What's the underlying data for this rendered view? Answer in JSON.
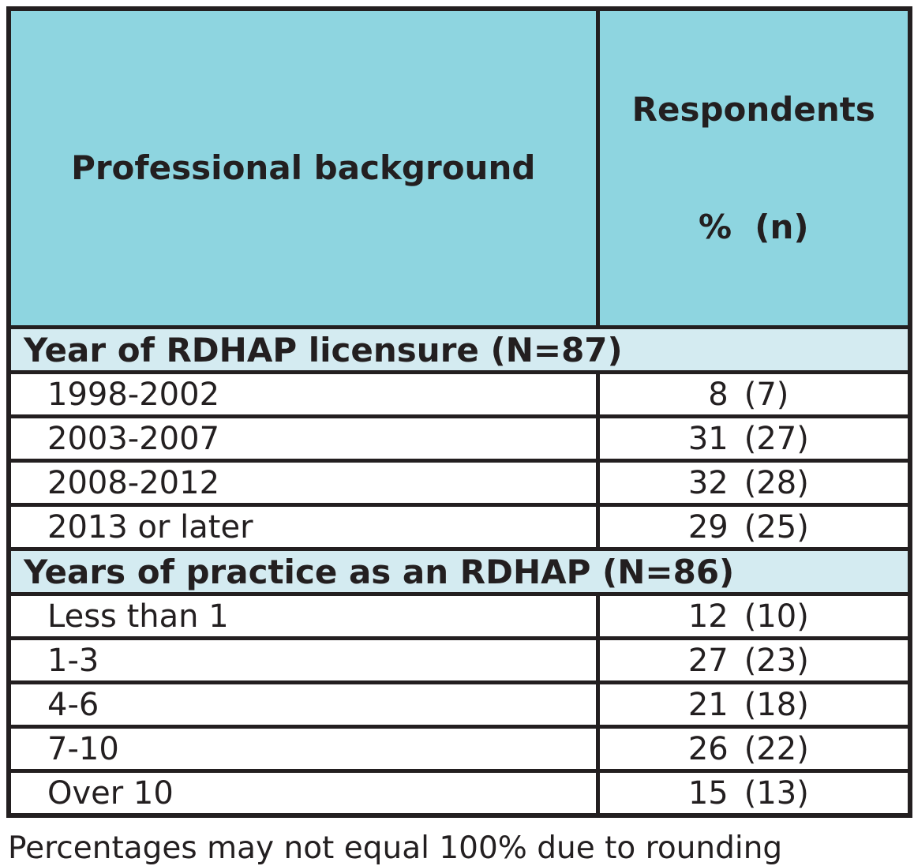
{
  "colors": {
    "header_bg": "#8ed5e0",
    "section_bg": "#d4ebf1",
    "border": "#231f20",
    "text": "#231f20",
    "page_bg": "#ffffff"
  },
  "table": {
    "columns": [
      {
        "label": "Professional background"
      },
      {
        "label_line1": "Respondents",
        "label_line2": "%  (n)"
      }
    ],
    "sections": [
      {
        "title": "Year of RDHAP licensure (N=87)",
        "rows": [
          {
            "label": "1998-2002",
            "pct": "8",
            "n": "(7)"
          },
          {
            "label": "2003-2007",
            "pct": "31",
            "n": "(27)"
          },
          {
            "label": "2008-2012",
            "pct": "32",
            "n": "(28)"
          },
          {
            "label": "2013 or later",
            "pct": "29",
            "n": "(25)"
          }
        ]
      },
      {
        "title": "Years of practice as an RDHAP (N=86)",
        "rows": [
          {
            "label": "Less than 1",
            "pct": "12",
            "n": "(10)"
          },
          {
            "label": "1-3",
            "pct": "27",
            "n": "(23)"
          },
          {
            "label": "4-6",
            "pct": "21",
            "n": "(18)"
          },
          {
            "label": "7-10",
            "pct": "26",
            "n": "(22)"
          },
          {
            "label": "Over 10",
            "pct": "15",
            "n": "(13)"
          }
        ]
      }
    ]
  },
  "footnote": "Percentages may not equal 100% due to rounding"
}
